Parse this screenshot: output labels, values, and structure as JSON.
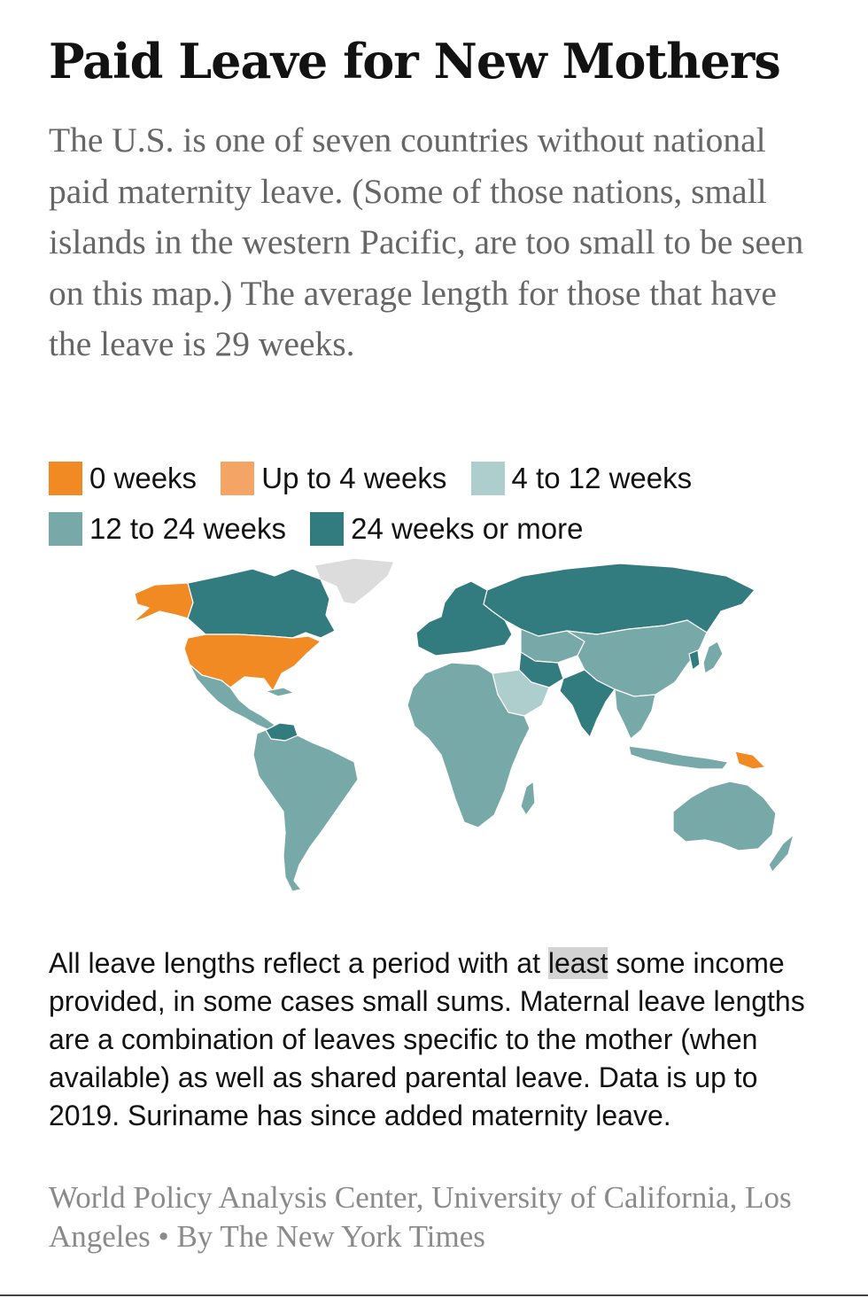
{
  "header": {
    "title": "Paid Leave for New Mothers",
    "subtitle": "The U.S. is one of seven countries without national paid maternity leave. (Some of those nations, small islands in the western Pacific, are too small to be seen on this map.) The average length for those that have the leave is 29 weeks."
  },
  "legend": {
    "items": [
      {
        "label": "0 weeks",
        "color": "#f28a24"
      },
      {
        "label": "Up to 4 weeks",
        "color": "#f4a465"
      },
      {
        "label": "4 to 12 weeks",
        "color": "#aecdcd"
      },
      {
        "label": "12 to 24 weeks",
        "color": "#78a9a9"
      },
      {
        "label": "24 weeks or more",
        "color": "#327b7e"
      }
    ]
  },
  "map": {
    "no_data_color": "#dcdcdc",
    "regions": [
      {
        "name": "Greenland",
        "category": "no data"
      },
      {
        "name": "Alaska",
        "category": "0 weeks"
      },
      {
        "name": "Canada",
        "category": "24 weeks or more"
      },
      {
        "name": "United States",
        "category": "0 weeks"
      },
      {
        "name": "Mexico",
        "category": "12 to 24 weeks"
      },
      {
        "name": "Central America",
        "category": "12 to 24 weeks"
      },
      {
        "name": "Venezuela",
        "category": "24 weeks or more"
      },
      {
        "name": "South America",
        "category": "12 to 24 weeks"
      },
      {
        "name": "Europe",
        "category": "24 weeks or more"
      },
      {
        "name": "Russia",
        "category": "24 weeks or more"
      },
      {
        "name": "Iran",
        "category": "24 weeks or more"
      },
      {
        "name": "India",
        "category": "24 weeks or more"
      },
      {
        "name": "Mongolia",
        "category": "12 to 24 weeks"
      },
      {
        "name": "China",
        "category": "12 to 24 weeks"
      },
      {
        "name": "Southeast Asia",
        "category": "12 to 24 weeks"
      },
      {
        "name": "Arabian Peninsula",
        "category": "4 to 12 weeks"
      },
      {
        "name": "Africa",
        "category": "12 to 24 weeks"
      },
      {
        "name": "Madagascar",
        "category": "12 to 24 weeks"
      },
      {
        "name": "Indonesia",
        "category": "12 to 24 weeks"
      },
      {
        "name": "Papua New Guinea",
        "category": "0 weeks"
      },
      {
        "name": "Australia",
        "category": "12 to 24 weeks"
      },
      {
        "name": "New Zealand",
        "category": "12 to 24 weeks"
      },
      {
        "name": "Japan",
        "category": "12 to 24 weeks"
      }
    ]
  },
  "footer": {
    "note_before": "All leave lengths reflect a period with at ",
    "note_highlight": "least",
    "note_after": " some income provided, in some cases small sums. Maternal leave lengths are a combination of leaves specific to the mother (when available) as well as shared parental leave. Data is up to 2019. Suriname has since added maternity leave.",
    "source": "World Policy Analysis Center, University of California, Los Angeles • By The New York Times"
  }
}
